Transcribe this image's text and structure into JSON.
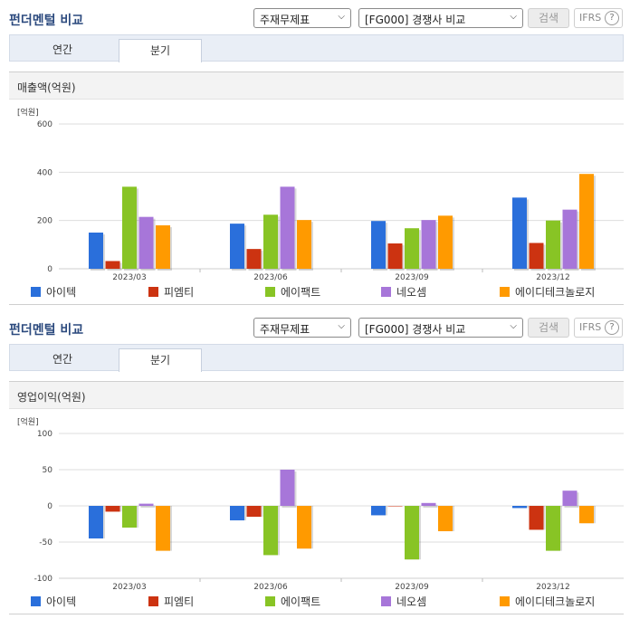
{
  "colors": {
    "s1": "#2a6fdb",
    "s2": "#cc3311",
    "s3": "#88c425",
    "s4": "#a776d9",
    "s5": "#ff9a00"
  },
  "panels": [
    {
      "title": "펀더멘털 비교",
      "select1": "주재무제표",
      "select2": "[FG000] 경쟁사 비교",
      "search_label": "검색",
      "ifrs_label": "IFRS",
      "ifrs_help": "?",
      "tabs": [
        {
          "label": "연간"
        },
        {
          "label": "분기"
        }
      ],
      "chart_title": "매출액(억원)"
    },
    {
      "title": "펀더멘털 비교",
      "select1": "주재무제표",
      "select2": "[FG000] 경쟁사 비교",
      "search_label": "검색",
      "ifrs_label": "IFRS",
      "ifrs_help": "?",
      "tabs": [
        {
          "label": "연간"
        },
        {
          "label": "분기"
        }
      ],
      "chart_title": "영업이익(억원)"
    }
  ],
  "chart_data": [
    {
      "type": "bar",
      "title": "매출액(억원)",
      "unit_label": "[억원]",
      "categories": [
        "2023/03",
        "2023/06",
        "2023/09",
        "2023/12"
      ],
      "ylim": [
        0,
        600
      ],
      "yticks": [
        0,
        200,
        400,
        600
      ],
      "grid": true,
      "legend_position": "bottom",
      "series": [
        {
          "name": "아이텍",
          "values": [
            150,
            187,
            198,
            295
          ]
        },
        {
          "name": "피엠티",
          "values": [
            32,
            82,
            105,
            107
          ]
        },
        {
          "name": "에이팩트",
          "values": [
            340,
            224,
            168,
            200
          ]
        },
        {
          "name": "네오셈",
          "values": [
            215,
            340,
            202,
            245
          ]
        },
        {
          "name": "에이디테크놀로지",
          "values": [
            180,
            202,
            220,
            393
          ]
        }
      ]
    },
    {
      "type": "bar",
      "title": "영업이익(억원)",
      "unit_label": "[억원]",
      "categories": [
        "2023/03",
        "2023/06",
        "2023/09",
        "2023/12"
      ],
      "ylim": [
        -100,
        100
      ],
      "yticks": [
        -100,
        -50,
        0,
        50,
        100
      ],
      "grid": true,
      "legend_position": "bottom",
      "series": [
        {
          "name": "아이텍",
          "values": [
            -45,
            -20,
            -13,
            -3
          ]
        },
        {
          "name": "피엠티",
          "values": [
            -8,
            -15,
            0,
            -33
          ]
        },
        {
          "name": "에이팩트",
          "values": [
            -30,
            -68,
            -74,
            -62
          ]
        },
        {
          "name": "네오셈",
          "values": [
            3,
            50,
            4,
            21
          ]
        },
        {
          "name": "에이디테크놀로지",
          "values": [
            -62,
            -59,
            -35,
            -24
          ]
        }
      ]
    }
  ]
}
